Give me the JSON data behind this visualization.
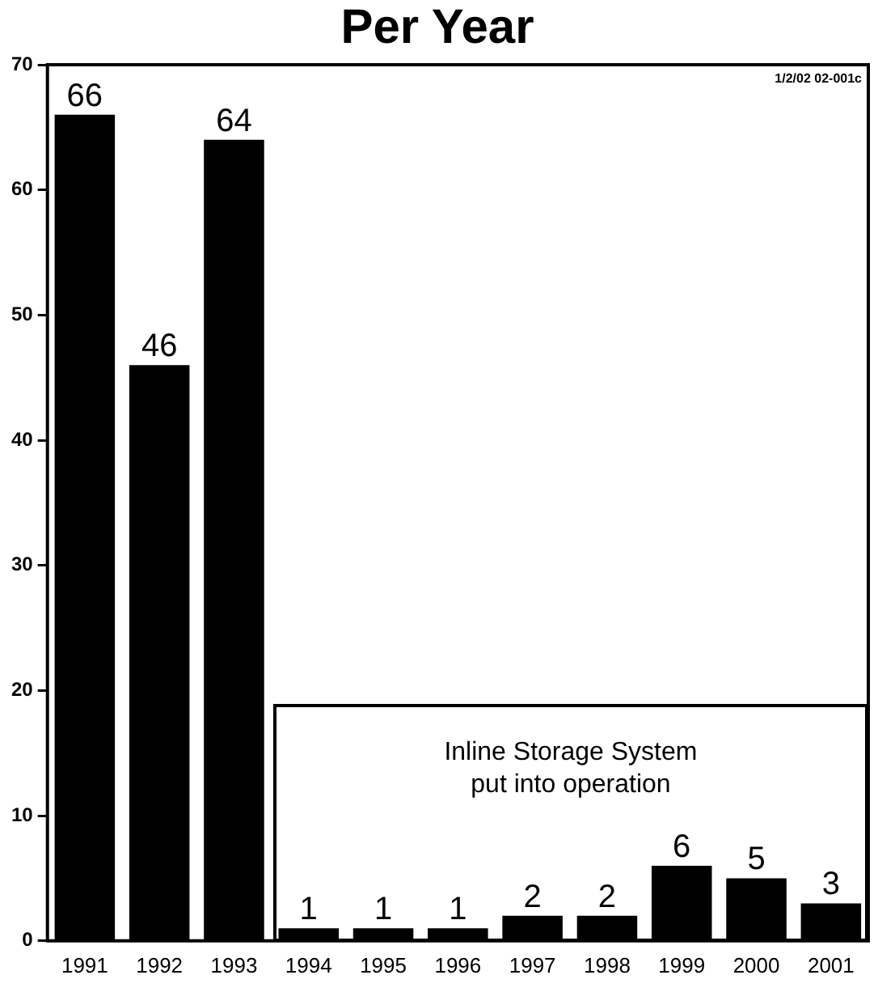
{
  "chart_data": {
    "type": "bar",
    "title": "Per Year",
    "categories": [
      "1991",
      "1992",
      "1993",
      "1994",
      "1995",
      "1996",
      "1997",
      "1998",
      "1999",
      "2000",
      "2001"
    ],
    "values": [
      66,
      46,
      64,
      1,
      1,
      1,
      2,
      2,
      6,
      5,
      3
    ],
    "color": "#000000",
    "data_labels": true,
    "ylim": [
      0,
      70
    ],
    "yticks": [
      0,
      10,
      20,
      30,
      40,
      50,
      60,
      70
    ],
    "grid": false,
    "legend": false,
    "annotations": [
      "1/2/02 02-001c",
      "Inline Storage System put into operation"
    ]
  }
}
